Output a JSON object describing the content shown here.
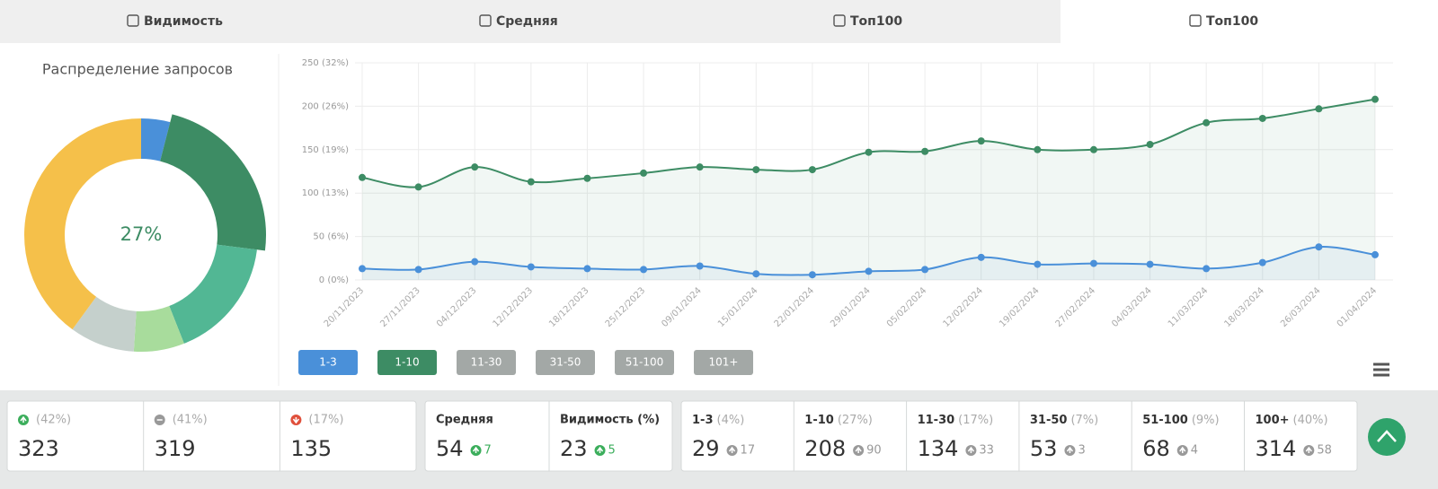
{
  "tabs": [
    "Видимость",
    "Средняя",
    "Топ100",
    "Топ100"
  ],
  "chart_data": [
    {
      "type": "donut",
      "title": "Распределение запросов",
      "center_label": "27%",
      "values": [
        4,
        23,
        17,
        7,
        9,
        40
      ],
      "colors": [
        "#4a90d9",
        "#3d8c64",
        "#52b794",
        "#a8dc9c",
        "#c5d0cc",
        "#f5c04a"
      ],
      "highlight": 1
    },
    {
      "type": "line",
      "categories": [
        "20/11/2023",
        "27/11/2023",
        "04/12/2023",
        "12/12/2023",
        "18/12/2023",
        "25/12/2023",
        "09/01/2024",
        "15/01/2024",
        "22/01/2024",
        "29/01/2024",
        "05/02/2024",
        "12/02/2024",
        "19/02/2024",
        "27/02/2024",
        "04/03/2024",
        "11/03/2024",
        "18/03/2024",
        "26/03/2024",
        "01/04/2024"
      ],
      "series": [
        {
          "name": "1-3",
          "color": "#4a90d9",
          "values": [
            13,
            12,
            21,
            15,
            13,
            12,
            16,
            7,
            6,
            10,
            12,
            26,
            18,
            19,
            18,
            13,
            20,
            38,
            29
          ]
        },
        {
          "name": "1-10",
          "color": "#3d8c64",
          "values": [
            118,
            107,
            130,
            113,
            117,
            123,
            130,
            127,
            127,
            147,
            148,
            160,
            150,
            150,
            156,
            181,
            186,
            197,
            208
          ]
        }
      ],
      "hidden_series": [
        {
          "name": "11-30"
        },
        {
          "name": "31-50"
        },
        {
          "name": "51-100"
        },
        {
          "name": "101+"
        }
      ],
      "hidden_color": "#a3a8a6",
      "ylim": [
        0,
        250
      ],
      "yticks": [
        {
          "value": 0,
          "label": "0 (0%)"
        },
        {
          "value": 50,
          "label": "50 (6%)"
        },
        {
          "value": 100,
          "label": "100 (13%)"
        },
        {
          "value": 150,
          "label": "150 (19%)"
        },
        {
          "value": 200,
          "label": "200 (26%)"
        },
        {
          "value": 250,
          "label": "250 (32%)"
        }
      ],
      "grid": true
    }
  ],
  "stats": {
    "changes": [
      {
        "percent": "(42%)",
        "value": 323
      },
      {
        "percent": "(41%)",
        "value": 319
      },
      {
        "percent": "(17%)",
        "value": 135
      }
    ],
    "summary": [
      {
        "label": "Средняя",
        "value": 54,
        "delta": 7
      },
      {
        "label": "Видимость (%)",
        "value": 23,
        "delta": 5
      }
    ],
    "ranges": [
      {
        "label": "1-3",
        "percent": "(4%)",
        "value": 29,
        "delta": 17
      },
      {
        "label": "1-10",
        "percent": "(27%)",
        "value": 208,
        "delta": 90
      },
      {
        "label": "11-30",
        "percent": "(17%)",
        "value": 134,
        "delta": 33
      },
      {
        "label": "31-50",
        "percent": "(7%)",
        "value": 53,
        "delta": 3
      },
      {
        "label": "51-100",
        "percent": "(9%)",
        "value": 68,
        "delta": 4
      },
      {
        "label": "100+",
        "percent": "(40%)",
        "value": 314,
        "delta": 58
      }
    ]
  }
}
